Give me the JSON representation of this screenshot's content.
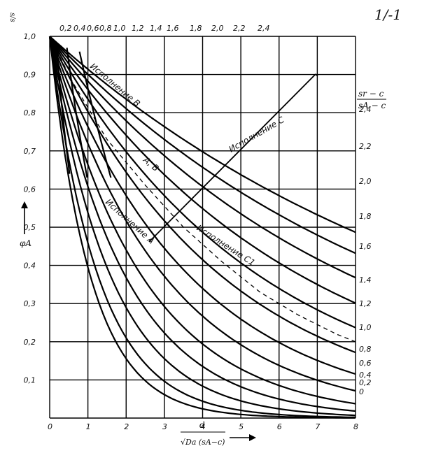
{
  "chart_data": {
    "type": "line",
    "corner_mark": "1/-1",
    "y_title": "s/s",
    "y_axis_label": "φA",
    "x_title_num": "d",
    "x_title_den": "√Da (sA−c)",
    "right_title_num": "sr − c",
    "right_title_den": "sA − c",
    "xlim": [
      0,
      8
    ],
    "ylim": [
      0,
      1.0
    ],
    "x_ticks": [
      "0",
      "1",
      "2",
      "3",
      "4",
      "5",
      "6",
      "7",
      "8"
    ],
    "y_ticks": [
      "0,1",
      "0,2",
      "0,3",
      "0,4",
      "0,5",
      "0,6",
      "0,7",
      "0,8",
      "0,9",
      "1,0"
    ],
    "top_labels": [
      "0,2",
      "0,4",
      "0,6",
      "0,8",
      "1,0",
      "1,2",
      "1,4",
      "1,6",
      "1,8",
      "2,0",
      "2,2",
      "2,4"
    ],
    "right_labels": [
      "2,4",
      "2,2",
      "2,0",
      "1,8",
      "1,6",
      "1,4",
      "1,2",
      "1,0",
      "0,8",
      "0,6",
      "0,4",
      "0,2",
      "0"
    ],
    "variants": [
      "Исполнение B",
      "Исполнение C",
      "Исполнение A",
      "Исполнение C1",
      "A, B"
    ],
    "series": [
      {
        "value": 0,
        "k": 0.93
      },
      {
        "value": 0.2,
        "k": 0.78
      },
      {
        "value": 0.4,
        "k": 0.62
      },
      {
        "value": 0.6,
        "k": 0.5
      },
      {
        "value": 0.8,
        "k": 0.41
      },
      {
        "value": 1.0,
        "k": 0.33
      },
      {
        "value": 1.2,
        "k": 0.27
      },
      {
        "value": 1.4,
        "k": 0.22
      },
      {
        "value": 1.6,
        "k": 0.18
      },
      {
        "value": 1.8,
        "k": 0.15
      },
      {
        "value": 2.0,
        "k": 0.125
      },
      {
        "value": 2.2,
        "k": 0.105
      },
      {
        "value": 2.4,
        "k": 0.09
      }
    ],
    "steep_series": [
      {
        "value": 0.2,
        "y_top": 0.98,
        "x_top": 0.18,
        "x_bot": 0.52,
        "y_bot": 0.64
      },
      {
        "value": 0.4,
        "y_top": 0.97,
        "x_top": 0.45,
        "x_bot": 0.98,
        "y_bot": 0.63
      },
      {
        "value": 0.6,
        "y_top": 0.96,
        "x_top": 0.78,
        "x_bot": 1.6,
        "y_bot": 0.63
      }
    ],
    "dashed_series": [
      {
        "name": "Исполнение C1",
        "points": [
          [
            0,
            1.0
          ],
          [
            0.6,
            0.88
          ],
          [
            1.5,
            0.73
          ],
          [
            2.5,
            0.61
          ],
          [
            3.5,
            0.5
          ],
          [
            4.5,
            0.41
          ],
          [
            5.5,
            0.33
          ],
          [
            6.5,
            0.27
          ],
          [
            7.5,
            0.22
          ],
          [
            8,
            0.2
          ]
        ]
      }
    ],
    "grid": true
  }
}
